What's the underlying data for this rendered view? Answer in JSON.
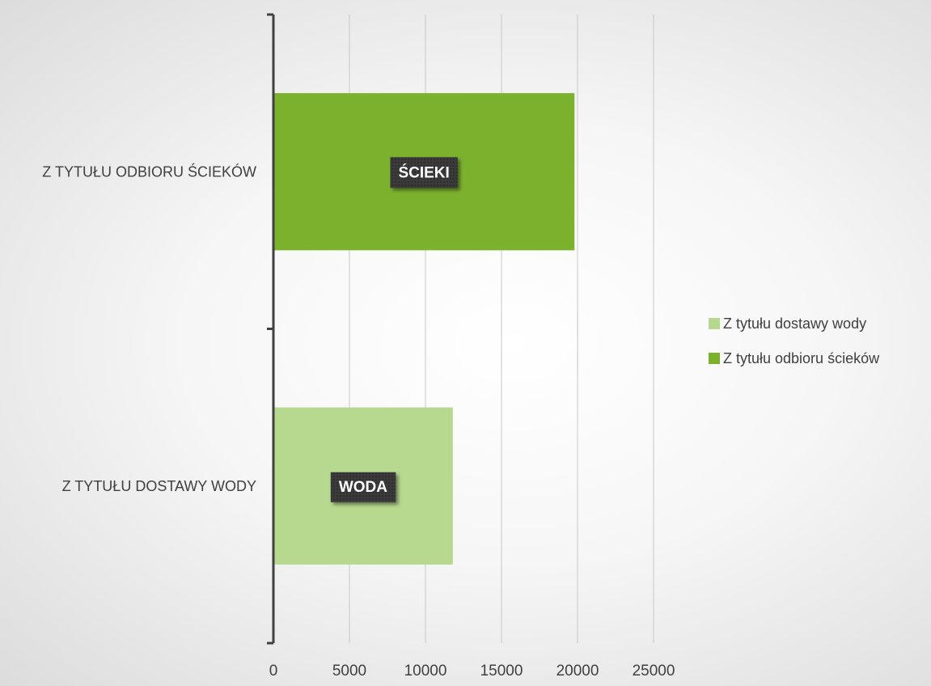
{
  "chart_data": {
    "type": "bar",
    "orientation": "horizontal",
    "categories": [
      "Z TYTUŁU DOSTAWY WODY",
      "Z TYTUŁU ODBIORU ŚCIEKÓW"
    ],
    "series": [
      {
        "name": "Z tytułu dostawy wody",
        "values": [
          11800,
          null
        ],
        "color": "#b6d88f",
        "data_label": "WODA"
      },
      {
        "name": "Z tytułu odbioru ścieków",
        "values": [
          null,
          19800
        ],
        "color": "#7cb12e",
        "data_label": "ŚCIEKI"
      }
    ],
    "x_ticks": [
      "0",
      "5000",
      "10000",
      "15000",
      "20000",
      "25000"
    ],
    "xlim": [
      0,
      25000
    ],
    "grid": true,
    "legend_position": "right"
  }
}
